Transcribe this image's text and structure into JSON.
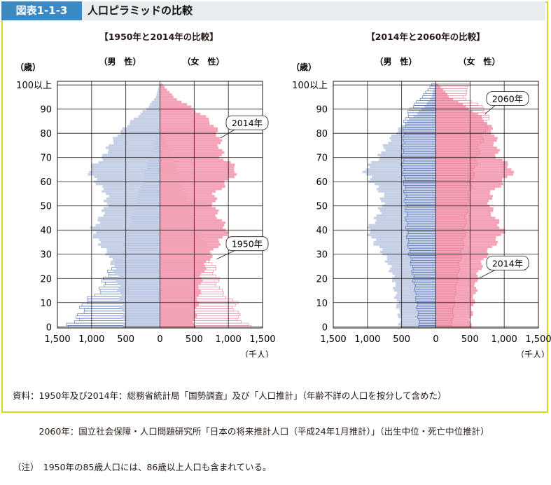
{
  "header": {
    "figure_tag": "図表1-1-3",
    "title": "人口ピラミッドの比較"
  },
  "notes": [
    "資料：1950年及び2014年：総務省統計局「国勢調査」及び「人口推計」（年齢不詳の人口を按分して含めた）",
    "　　　2060年：国立社会保障・人口問題研究所「日本の将来推計人口（平成24年1月推計）」（出生中位・死亡中位推計）",
    "（注）　1950年の85歳人口には、86歳以上人口も含まれている。"
  ],
  "colors": {
    "male_fill": "#c5d0e7",
    "female_fill": "#f4a3b7",
    "male_outline": "#4a67b0",
    "female_outline": "#e77e98",
    "grid": "#231815"
  },
  "chart_data": [
    {
      "type": "population_pyramid",
      "title": "【1950年と2014年の比較】",
      "male_label": "（男　性）",
      "female_label": "（女　性）",
      "age_axis_label": "（歳）",
      "age_ticks": [
        "0",
        "10",
        "20",
        "30",
        "40",
        "50",
        "60",
        "70",
        "80",
        "90",
        "100以上"
      ],
      "x_ticks": [
        "1,500",
        "1,000",
        "500",
        "0",
        "500",
        "1,000",
        "1,500"
      ],
      "x_unit": "（千人）",
      "xlim": [
        -1500,
        1500
      ],
      "age_range": [
        0,
        100
      ],
      "series": [
        {
          "name": "1950年",
          "style": "outline",
          "ages": [
            0,
            5,
            10,
            15,
            20,
            25,
            30,
            35,
            40,
            45,
            50,
            55,
            60,
            65,
            70,
            75,
            80,
            85,
            90,
            95,
            100
          ],
          "male": [
            1340,
            1160,
            1110,
            860,
            810,
            680,
            530,
            510,
            450,
            400,
            350,
            300,
            240,
            200,
            130,
            70,
            30,
            5,
            0,
            0,
            0
          ],
          "female": [
            1280,
            1120,
            1090,
            870,
            830,
            780,
            720,
            640,
            550,
            470,
            400,
            350,
            290,
            240,
            170,
            100,
            50,
            10,
            0,
            0,
            0
          ]
        },
        {
          "name": "2014年",
          "style": "filled",
          "ages": [
            0,
            5,
            10,
            15,
            20,
            25,
            30,
            35,
            40,
            45,
            50,
            55,
            60,
            65,
            70,
            75,
            80,
            85,
            90,
            95,
            100
          ],
          "male": [
            520,
            540,
            570,
            600,
            620,
            680,
            760,
            900,
            1000,
            870,
            790,
            780,
            940,
            1050,
            830,
            740,
            600,
            420,
            200,
            60,
            10
          ],
          "female": [
            500,
            520,
            550,
            580,
            600,
            660,
            740,
            880,
            990,
            860,
            790,
            800,
            990,
            1140,
            910,
            880,
            850,
            740,
            500,
            200,
            40
          ]
        }
      ],
      "annotations": [
        "2014年",
        "1950年"
      ]
    },
    {
      "type": "population_pyramid",
      "title": "【2014年と2060年の比較】",
      "male_label": "（男　性）",
      "female_label": "（女　性）",
      "age_axis_label": "（歳）",
      "age_ticks": [
        "0",
        "10",
        "20",
        "30",
        "40",
        "50",
        "60",
        "70",
        "80",
        "90",
        "100以上"
      ],
      "x_ticks": [
        "1,500",
        "1,000",
        "500",
        "0",
        "500",
        "1,000",
        "1,500"
      ],
      "x_unit": "（千人）",
      "xlim": [
        -1500,
        1500
      ],
      "age_range": [
        0,
        100
      ],
      "series": [
        {
          "name": "2014年",
          "style": "filled",
          "ages": [
            0,
            5,
            10,
            15,
            20,
            25,
            30,
            35,
            40,
            45,
            50,
            55,
            60,
            65,
            70,
            75,
            80,
            85,
            90,
            95,
            100
          ],
          "male": [
            520,
            540,
            570,
            600,
            620,
            680,
            760,
            900,
            1000,
            870,
            790,
            780,
            940,
            1050,
            830,
            740,
            600,
            420,
            200,
            60,
            10
          ],
          "female": [
            500,
            520,
            550,
            580,
            600,
            660,
            740,
            880,
            990,
            860,
            790,
            800,
            990,
            1140,
            910,
            880,
            850,
            740,
            500,
            200,
            40
          ]
        },
        {
          "name": "2060年",
          "style": "outline",
          "ages": [
            0,
            5,
            10,
            15,
            20,
            25,
            30,
            35,
            40,
            45,
            50,
            55,
            60,
            65,
            70,
            75,
            80,
            85,
            90,
            95,
            100
          ],
          "male": [
            240,
            260,
            280,
            300,
            330,
            350,
            380,
            410,
            420,
            430,
            440,
            450,
            460,
            480,
            490,
            480,
            470,
            450,
            380,
            200,
            60
          ],
          "female": [
            230,
            250,
            270,
            290,
            320,
            340,
            370,
            400,
            420,
            440,
            460,
            490,
            520,
            560,
            600,
            640,
            700,
            760,
            720,
            400,
            500
          ]
        }
      ],
      "annotations": [
        "2060年",
        "2014年"
      ]
    }
  ]
}
